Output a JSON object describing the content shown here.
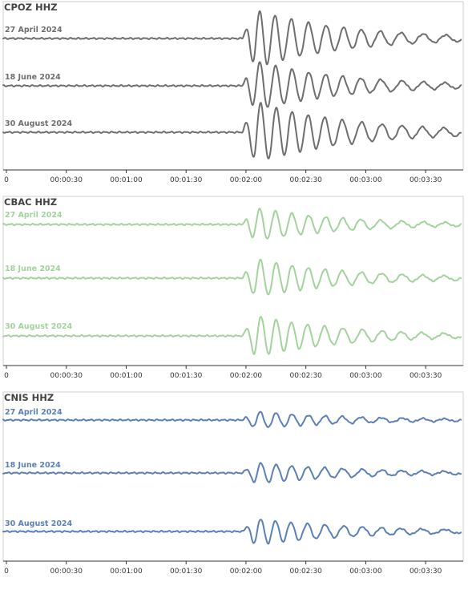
{
  "chart_data": [
    {
      "type": "line",
      "title": "CPOZ  HHZ",
      "color": "#6e6e6e",
      "xlabel": "",
      "ylabel": "",
      "x_ticks": [
        "0",
        "00:00:30",
        "00:01:00",
        "00:01:30",
        "00:02:00",
        "00:02:30",
        "00:03:00",
        "00:03:30"
      ],
      "xlim_seconds": [
        0,
        228
      ],
      "grid": false,
      "series": [
        {
          "name": "27 April 2024",
          "onset_seconds": 118
        },
        {
          "name": "18 June 2024",
          "onset_seconds": 118
        },
        {
          "name": "30 August 2024",
          "onset_seconds": 118
        }
      ]
    },
    {
      "type": "line",
      "title": "CBAC  HHZ",
      "color": "#a3d39c",
      "xlabel": "",
      "ylabel": "",
      "x_ticks": [
        "0",
        "00:00:30",
        "00:01:00",
        "00:01:30",
        "00:02:00",
        "00:02:30",
        "00:03:00",
        "00:03:30"
      ],
      "xlim_seconds": [
        0,
        228
      ],
      "grid": false,
      "series": [
        {
          "name": "27 April 2024",
          "onset_seconds": 118
        },
        {
          "name": "18 June 2024",
          "onset_seconds": 118
        },
        {
          "name": "30 August 2024",
          "onset_seconds": 118
        }
      ]
    },
    {
      "type": "line",
      "title": "CNIS  HHZ",
      "color": "#5b7fb8",
      "xlabel": "",
      "ylabel": "",
      "x_ticks": [
        "0",
        "00:00:30",
        "00:01:00",
        "00:01:30",
        "00:02:00",
        "00:02:30",
        "00:03:00",
        "00:03:30"
      ],
      "xlim_seconds": [
        0,
        228
      ],
      "grid": false,
      "series": [
        {
          "name": "27 April 2024",
          "onset_seconds": 118
        },
        {
          "name": "18 June 2024",
          "onset_seconds": 118
        },
        {
          "name": "30 August 2024",
          "onset_seconds": 118
        }
      ]
    }
  ]
}
